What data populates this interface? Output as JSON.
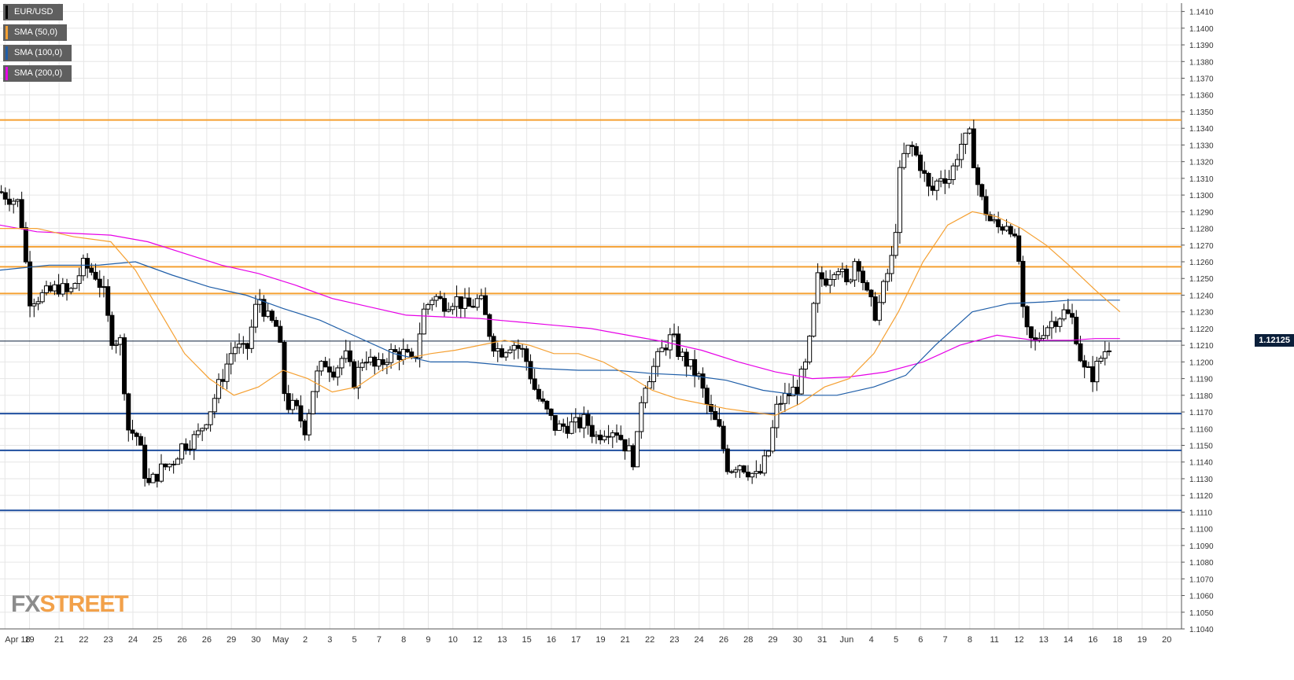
{
  "chart_data": {
    "type": "candlestick",
    "symbol": "EUR/USD",
    "ylim": [
      1.104,
      1.1415
    ],
    "y_ticks": [
      1.104,
      1.105,
      1.106,
      1.107,
      1.108,
      1.109,
      1.11,
      1.111,
      1.112,
      1.113,
      1.114,
      1.115,
      1.116,
      1.117,
      1.118,
      1.119,
      1.12,
      1.121,
      1.122,
      1.123,
      1.124,
      1.125,
      1.126,
      1.127,
      1.128,
      1.129,
      1.13,
      1.131,
      1.132,
      1.133,
      1.134,
      1.135,
      1.136,
      1.137,
      1.138,
      1.139,
      1.14,
      1.141
    ],
    "x_labels": [
      "Apr 18",
      "19",
      "21",
      "22",
      "23",
      "24",
      "25",
      "26",
      "26",
      "29",
      "30",
      "May",
      "2",
      "3",
      "5",
      "7",
      "8",
      "9",
      "10",
      "12",
      "13",
      "15",
      "16",
      "17",
      "19",
      "21",
      "22",
      "23",
      "24",
      "26",
      "28",
      "29",
      "30",
      "31",
      "Jun",
      "4",
      "5",
      "6",
      "7",
      "8",
      "11",
      "12",
      "13",
      "14",
      "16",
      "18",
      "19",
      "20"
    ],
    "x_label_positions": [
      0.2,
      1.2,
      2.4,
      3.4,
      4.4,
      5.4,
      6.4,
      7.4,
      8.4,
      9.4,
      10.4,
      11.4,
      12.4,
      13.4,
      14.4,
      15.4,
      16.4,
      17.4,
      18.4,
      19.4,
      20.4,
      21.4,
      22.4,
      23.4,
      24.4,
      25.4,
      26.4,
      27.4,
      28.4,
      29.4,
      30.4,
      31.4,
      32.4,
      33.4,
      34.4,
      35.4,
      36.4,
      37.4,
      38.4,
      39.4,
      40.4,
      41.4,
      42.4,
      43.4,
      44.4,
      45.4,
      46.4,
      47.4
    ],
    "x_range": [
      0,
      48
    ],
    "horizontal_levels": [
      {
        "value": 1.1345,
        "color": "#f5a032"
      },
      {
        "value": 1.1269,
        "color": "#f5a032"
      },
      {
        "value": 1.1257,
        "color": "#f5a032"
      },
      {
        "value": 1.1241,
        "color": "#f5a032"
      },
      {
        "value": 1.1169,
        "color": "#1f4e9e"
      },
      {
        "value": 1.1147,
        "color": "#1f4e9e"
      },
      {
        "value": 1.1111,
        "color": "#1f4e9e"
      }
    ],
    "current_price": 1.12125,
    "current_price_label": "1.12125",
    "price_anchors": [
      [
        0,
        1.1302
      ],
      [
        0.8,
        1.1295
      ],
      [
        1.2,
        1.1238
      ],
      [
        1.8,
        1.124
      ],
      [
        2.4,
        1.1245
      ],
      [
        2.8,
        1.124
      ],
      [
        3.4,
        1.1258
      ],
      [
        3.9,
        1.1252
      ],
      [
        4.2,
        1.1242
      ],
      [
        4.5,
        1.1215
      ],
      [
        4.9,
        1.1212
      ],
      [
        5.2,
        1.116
      ],
      [
        5.6,
        1.1155
      ],
      [
        6.0,
        1.1125
      ],
      [
        6.5,
        1.1135
      ],
      [
        7.0,
        1.114
      ],
      [
        7.4,
        1.115
      ],
      [
        8.0,
        1.1155
      ],
      [
        8.5,
        1.117
      ],
      [
        9.0,
        1.119
      ],
      [
        9.5,
        1.121
      ],
      [
        10.0,
        1.1205
      ],
      [
        10.5,
        1.124
      ],
      [
        10.9,
        1.1225
      ],
      [
        11.3,
        1.122
      ],
      [
        11.6,
        1.1175
      ],
      [
        12.0,
        1.1172
      ],
      [
        12.4,
        1.116
      ],
      [
        12.8,
        1.119
      ],
      [
        13.2,
        1.12
      ],
      [
        13.6,
        1.1195
      ],
      [
        14.0,
        1.1205
      ],
      [
        14.4,
        1.1188
      ],
      [
        14.8,
        1.1205
      ],
      [
        15.3,
        1.1195
      ],
      [
        15.8,
        1.1205
      ],
      [
        16.4,
        1.1205
      ],
      [
        16.8,
        1.1198
      ],
      [
        17.2,
        1.123
      ],
      [
        17.6,
        1.124
      ],
      [
        18.0,
        1.1235
      ],
      [
        18.5,
        1.1238
      ],
      [
        19.0,
        1.1232
      ],
      [
        19.5,
        1.1238
      ],
      [
        20.0,
        1.1212
      ],
      [
        20.3,
        1.1206
      ],
      [
        20.8,
        1.1212
      ],
      [
        21.3,
        1.1205
      ],
      [
        21.8,
        1.118
      ],
      [
        22.2,
        1.117
      ],
      [
        22.6,
        1.116
      ],
      [
        23.0,
        1.1162
      ],
      [
        23.4,
        1.1162
      ],
      [
        23.8,
        1.1165
      ],
      [
        24.2,
        1.1155
      ],
      [
        24.6,
        1.116
      ],
      [
        25.0,
        1.116
      ],
      [
        25.4,
        1.115
      ],
      [
        25.8,
        1.114
      ],
      [
        26.1,
        1.1185
      ],
      [
        26.5,
        1.1195
      ],
      [
        27.0,
        1.121
      ],
      [
        27.3,
        1.1215
      ],
      [
        27.6,
        1.1205
      ],
      [
        28.0,
        1.1198
      ],
      [
        28.4,
        1.119
      ],
      [
        28.8,
        1.117
      ],
      [
        29.2,
        1.116
      ],
      [
        29.6,
        1.1135
      ],
      [
        30.0,
        1.114
      ],
      [
        30.4,
        1.1135
      ],
      [
        30.8,
        1.113
      ],
      [
        31.2,
        1.1145
      ],
      [
        31.6,
        1.1175
      ],
      [
        32.0,
        1.118
      ],
      [
        32.4,
        1.1185
      ],
      [
        32.8,
        1.12
      ],
      [
        33.2,
        1.125
      ],
      [
        33.6,
        1.125
      ],
      [
        34.0,
        1.126
      ],
      [
        34.4,
        1.1245
      ],
      [
        34.8,
        1.1265
      ],
      [
        35.2,
        1.124
      ],
      [
        35.6,
        1.1228
      ],
      [
        36.0,
        1.125
      ],
      [
        36.3,
        1.1265
      ],
      [
        36.6,
        1.132
      ],
      [
        37.0,
        1.133
      ],
      [
        37.4,
        1.1318
      ],
      [
        37.8,
        1.13
      ],
      [
        38.2,
        1.1312
      ],
      [
        38.6,
        1.131
      ],
      [
        39.0,
        1.133
      ],
      [
        39.4,
        1.1335
      ],
      [
        39.8,
        1.13
      ],
      [
        40.2,
        1.1285
      ],
      [
        40.6,
        1.128
      ],
      [
        41.0,
        1.1285
      ],
      [
        41.4,
        1.126
      ],
      [
        41.6,
        1.122
      ],
      [
        42.0,
        1.121
      ],
      [
        42.4,
        1.122
      ],
      [
        42.8,
        1.1225
      ],
      [
        43.2,
        1.123
      ],
      [
        43.6,
        1.1225
      ],
      [
        44.0,
        1.1195
      ],
      [
        44.4,
        1.1192
      ],
      [
        44.8,
        1.1205
      ],
      [
        45.2,
        1.1213
      ]
    ],
    "sma_50": [
      [
        0,
        1.128
      ],
      [
        1.5,
        1.128
      ],
      [
        3.0,
        1.1275
      ],
      [
        4.5,
        1.1272
      ],
      [
        5.5,
        1.1255
      ],
      [
        6.5,
        1.123
      ],
      [
        7.5,
        1.1205
      ],
      [
        8.5,
        1.119
      ],
      [
        9.5,
        1.118
      ],
      [
        10.5,
        1.1185
      ],
      [
        11.5,
        1.1195
      ],
      [
        12.5,
        1.119
      ],
      [
        13.5,
        1.1182
      ],
      [
        14.5,
        1.1185
      ],
      [
        15.5,
        1.1195
      ],
      [
        16.5,
        1.1202
      ],
      [
        17.5,
        1.1205
      ],
      [
        18.5,
        1.1207
      ],
      [
        19.5,
        1.121
      ],
      [
        20.5,
        1.1213
      ],
      [
        21.5,
        1.121
      ],
      [
        22.5,
        1.1205
      ],
      [
        23.5,
        1.1205
      ],
      [
        24.5,
        1.12
      ],
      [
        25.5,
        1.1192
      ],
      [
        26.5,
        1.1183
      ],
      [
        27.5,
        1.1178
      ],
      [
        28.5,
        1.1175
      ],
      [
        29.5,
        1.1172
      ],
      [
        30.5,
        1.117
      ],
      [
        31.5,
        1.1168
      ],
      [
        32.5,
        1.1175
      ],
      [
        33.5,
        1.1185
      ],
      [
        34.5,
        1.119
      ],
      [
        35.5,
        1.1205
      ],
      [
        36.5,
        1.123
      ],
      [
        37.5,
        1.126
      ],
      [
        38.5,
        1.1282
      ],
      [
        39.5,
        1.129
      ],
      [
        40.5,
        1.1287
      ],
      [
        41.5,
        1.128
      ],
      [
        42.5,
        1.127
      ],
      [
        43.5,
        1.1257
      ],
      [
        44.5,
        1.1243
      ],
      [
        45.5,
        1.123
      ]
    ],
    "sma_100": [
      [
        0,
        1.1255
      ],
      [
        2,
        1.1258
      ],
      [
        4,
        1.1258
      ],
      [
        5.5,
        1.126
      ],
      [
        7,
        1.1252
      ],
      [
        8.5,
        1.1245
      ],
      [
        10,
        1.124
      ],
      [
        11.5,
        1.1232
      ],
      [
        13,
        1.1225
      ],
      [
        14.5,
        1.1215
      ],
      [
        16,
        1.1205
      ],
      [
        17.5,
        1.12
      ],
      [
        19,
        1.12
      ],
      [
        20.5,
        1.1198
      ],
      [
        22,
        1.1196
      ],
      [
        23.5,
        1.1195
      ],
      [
        25,
        1.1195
      ],
      [
        26.5,
        1.1193
      ],
      [
        28,
        1.1192
      ],
      [
        29.5,
        1.1189
      ],
      [
        31,
        1.1183
      ],
      [
        32.5,
        1.118
      ],
      [
        34,
        1.118
      ],
      [
        35.5,
        1.1185
      ],
      [
        36.8,
        1.1192
      ],
      [
        38,
        1.121
      ],
      [
        39.5,
        1.123
      ],
      [
        41,
        1.1235
      ],
      [
        42.5,
        1.1236
      ],
      [
        43.5,
        1.1237
      ],
      [
        44.5,
        1.1237
      ],
      [
        45.5,
        1.1237
      ]
    ],
    "sma_200": [
      [
        0,
        1.1282
      ],
      [
        1.5,
        1.1278
      ],
      [
        3,
        1.1277
      ],
      [
        4.5,
        1.1276
      ],
      [
        6,
        1.1272
      ],
      [
        7.5,
        1.1265
      ],
      [
        9,
        1.1258
      ],
      [
        10.5,
        1.1253
      ],
      [
        12,
        1.1246
      ],
      [
        13.5,
        1.1238
      ],
      [
        15,
        1.1233
      ],
      [
        16.5,
        1.1228
      ],
      [
        18,
        1.1227
      ],
      [
        19.5,
        1.1226
      ],
      [
        21,
        1.1224
      ],
      [
        22.5,
        1.1222
      ],
      [
        24,
        1.122
      ],
      [
        25.5,
        1.1216
      ],
      [
        27,
        1.1212
      ],
      [
        28.5,
        1.1207
      ],
      [
        30,
        1.12
      ],
      [
        31.5,
        1.1194
      ],
      [
        33,
        1.119
      ],
      [
        34.5,
        1.1191
      ],
      [
        36,
        1.1194
      ],
      [
        37.5,
        1.12
      ],
      [
        39,
        1.121
      ],
      [
        40.5,
        1.1216
      ],
      [
        42,
        1.1213
      ],
      [
        43.5,
        1.1213
      ],
      [
        44.5,
        1.1214
      ],
      [
        45.5,
        1.1214
      ]
    ]
  },
  "legend": [
    {
      "label": "EUR/USD",
      "color": "#000000"
    },
    {
      "label": "SMA (50,0)",
      "color": "#f5a032"
    },
    {
      "label": "SMA (100,0)",
      "color": "#1f5ea8"
    },
    {
      "label": "SMA (200,0)",
      "color": "#e600e6"
    }
  ],
  "colors": {
    "grid": "#e6e6e6",
    "sma_50": "#f5a032",
    "sma_100": "#1f5ea8",
    "sma_200": "#e600e6",
    "candle": "#000000"
  },
  "logo": {
    "fx": "FX",
    "street": "STREET"
  }
}
